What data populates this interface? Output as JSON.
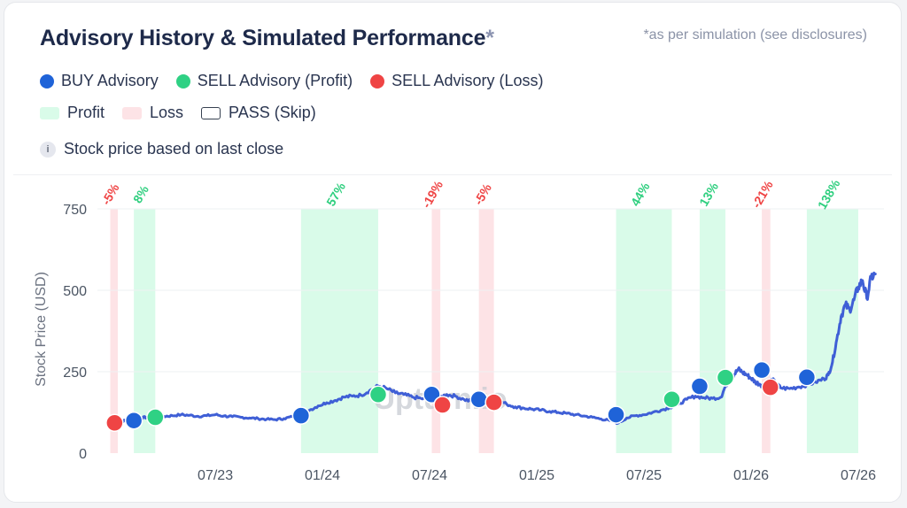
{
  "header": {
    "title": "Advisory History & Simulated Performance",
    "title_star": "*",
    "note": "*as per simulation (see disclosures)"
  },
  "legend": {
    "buy": "BUY Advisory",
    "sell_profit": "SELL Advisory (Profit)",
    "sell_loss": "SELL Advisory (Loss)",
    "profit": "Profit",
    "loss": "Loss",
    "pass": "PASS (Skip)"
  },
  "info": {
    "text": "Stock price based on last close",
    "icon": "info-icon"
  },
  "colors": {
    "buy": "#1f63d8",
    "sell_profit": "#2fd184",
    "sell_loss": "#ef4444",
    "line": "#3f5fd6",
    "profit_band": "#d9fbe9",
    "loss_band": "#fde3e6",
    "profit_text": "#2fcf7f",
    "loss_text": "#ef4444"
  },
  "chart_data": {
    "type": "line",
    "ylabel": "Stock Price (USD)",
    "ylim": [
      0,
      750
    ],
    "yticks": [
      "0",
      "250",
      "500",
      "750"
    ],
    "xticks": [
      {
        "label": "07/23",
        "t": 2023.5
      },
      {
        "label": "01/24",
        "t": 2024.0
      },
      {
        "label": "07/24",
        "t": 2024.5
      },
      {
        "label": "01/25",
        "t": 2025.0
      },
      {
        "label": "07/25",
        "t": 2025.5
      },
      {
        "label": "01/26",
        "t": 2026.0
      },
      {
        "label": "07/26",
        "t": 2026.5
      }
    ],
    "xlim": [
      2022.95,
      2026.62
    ],
    "watermark": "Upturn.io",
    "series": [
      {
        "points": [
          [
            2023.03,
            95
          ],
          [
            2023.06,
            98
          ],
          [
            2023.09,
            100
          ],
          [
            2023.12,
            103
          ],
          [
            2023.15,
            108
          ],
          [
            2023.18,
            110
          ],
          [
            2023.22,
            112
          ],
          [
            2023.26,
            113
          ],
          [
            2023.3,
            115
          ],
          [
            2023.34,
            118
          ],
          [
            2023.38,
            116
          ],
          [
            2023.42,
            113
          ],
          [
            2023.46,
            115
          ],
          [
            2023.5,
            118
          ],
          [
            2023.54,
            114
          ],
          [
            2023.58,
            112
          ],
          [
            2023.62,
            110
          ],
          [
            2023.66,
            108
          ],
          [
            2023.7,
            106
          ],
          [
            2023.74,
            104
          ],
          [
            2023.78,
            103
          ],
          [
            2023.82,
            106
          ],
          [
            2023.86,
            112
          ],
          [
            2023.9,
            122
          ],
          [
            2023.94,
            132
          ],
          [
            2023.98,
            145
          ],
          [
            2024.02,
            155
          ],
          [
            2024.06,
            162
          ],
          [
            2024.1,
            172
          ],
          [
            2024.14,
            175
          ],
          [
            2024.18,
            178
          ],
          [
            2024.22,
            192
          ],
          [
            2024.26,
            206
          ],
          [
            2024.3,
            198
          ],
          [
            2024.34,
            185
          ],
          [
            2024.38,
            180
          ],
          [
            2024.42,
            172
          ],
          [
            2024.46,
            168
          ],
          [
            2024.5,
            165
          ],
          [
            2024.54,
            170
          ],
          [
            2024.58,
            180
          ],
          [
            2024.62,
            175
          ],
          [
            2024.66,
            165
          ],
          [
            2024.7,
            158
          ],
          [
            2024.74,
            160
          ],
          [
            2024.78,
            165
          ],
          [
            2024.82,
            162
          ],
          [
            2024.86,
            150
          ],
          [
            2024.9,
            142
          ],
          [
            2024.94,
            138
          ],
          [
            2024.98,
            135
          ],
          [
            2025.02,
            132
          ],
          [
            2025.06,
            128
          ],
          [
            2025.1,
            125
          ],
          [
            2025.14,
            122
          ],
          [
            2025.18,
            118
          ],
          [
            2025.22,
            114
          ],
          [
            2025.26,
            110
          ],
          [
            2025.3,
            105
          ],
          [
            2025.34,
            100
          ],
          [
            2025.38,
            92
          ],
          [
            2025.42,
            108
          ],
          [
            2025.46,
            115
          ],
          [
            2025.5,
            118
          ],
          [
            2025.54,
            125
          ],
          [
            2025.58,
            132
          ],
          [
            2025.62,
            140
          ],
          [
            2025.66,
            150
          ],
          [
            2025.7,
            165
          ],
          [
            2025.74,
            175
          ],
          [
            2025.78,
            170
          ],
          [
            2025.82,
            168
          ],
          [
            2025.86,
            172
          ],
          [
            2025.88,
            205
          ],
          [
            2025.9,
            225
          ],
          [
            2025.92,
            240
          ],
          [
            2025.94,
            258
          ],
          [
            2025.96,
            248
          ],
          [
            2025.98,
            240
          ],
          [
            2026.0,
            230
          ],
          [
            2026.02,
            218
          ],
          [
            2026.04,
            212
          ],
          [
            2026.06,
            205
          ],
          [
            2026.08,
            220
          ],
          [
            2026.1,
            225
          ],
          [
            2026.12,
            210
          ],
          [
            2026.14,
            200
          ],
          [
            2026.18,
            198
          ],
          [
            2026.22,
            203
          ],
          [
            2026.26,
            210
          ],
          [
            2026.3,
            218
          ],
          [
            2026.34,
            228
          ],
          [
            2026.36,
            240
          ],
          [
            2026.38,
            280
          ],
          [
            2026.4,
            350
          ],
          [
            2026.42,
            420
          ],
          [
            2026.44,
            455
          ],
          [
            2026.46,
            440
          ],
          [
            2026.48,
            470
          ],
          [
            2026.5,
            510
          ],
          [
            2026.52,
            530
          ],
          [
            2026.54,
            475
          ],
          [
            2026.56,
            540
          ],
          [
            2026.58,
            550
          ]
        ]
      }
    ],
    "bands": [
      {
        "type": "loss",
        "t0": 2023.01,
        "t1": 2023.045,
        "label": "-5%"
      },
      {
        "type": "profit",
        "t0": 2023.12,
        "t1": 2023.22,
        "label": "8%"
      },
      {
        "type": "profit",
        "t0": 2023.9,
        "t1": 2024.26,
        "label": "57%"
      },
      {
        "type": "loss",
        "t0": 2024.51,
        "t1": 2024.55,
        "label": "-19%"
      },
      {
        "type": "loss",
        "t0": 2024.73,
        "t1": 2024.8,
        "label": "-5%"
      },
      {
        "type": "profit",
        "t0": 2025.37,
        "t1": 2025.63,
        "label": "44%"
      },
      {
        "type": "profit",
        "t0": 2025.76,
        "t1": 2025.88,
        "label": "13%"
      },
      {
        "type": "loss",
        "t0": 2026.05,
        "t1": 2026.09,
        "label": "-21%"
      },
      {
        "type": "profit",
        "t0": 2026.26,
        "t1": 2026.5,
        "label": "138%"
      }
    ],
    "markers": [
      {
        "kind": "sell_loss",
        "t": 2023.03,
        "y": 93
      },
      {
        "kind": "buy",
        "t": 2023.12,
        "y": 100
      },
      {
        "kind": "sell_profit",
        "t": 2023.22,
        "y": 110
      },
      {
        "kind": "buy",
        "t": 2023.9,
        "y": 115
      },
      {
        "kind": "sell_profit",
        "t": 2024.26,
        "y": 180
      },
      {
        "kind": "buy",
        "t": 2024.51,
        "y": 180
      },
      {
        "kind": "sell_loss",
        "t": 2024.56,
        "y": 148
      },
      {
        "kind": "buy",
        "t": 2024.73,
        "y": 165
      },
      {
        "kind": "sell_loss",
        "t": 2024.8,
        "y": 156
      },
      {
        "kind": "buy",
        "t": 2025.37,
        "y": 118
      },
      {
        "kind": "sell_profit",
        "t": 2025.63,
        "y": 165
      },
      {
        "kind": "buy",
        "t": 2025.76,
        "y": 205
      },
      {
        "kind": "sell_profit",
        "t": 2025.88,
        "y": 232
      },
      {
        "kind": "buy",
        "t": 2026.05,
        "y": 255
      },
      {
        "kind": "sell_loss",
        "t": 2026.09,
        "y": 202
      },
      {
        "kind": "buy",
        "t": 2026.26,
        "y": 233
      }
    ]
  }
}
